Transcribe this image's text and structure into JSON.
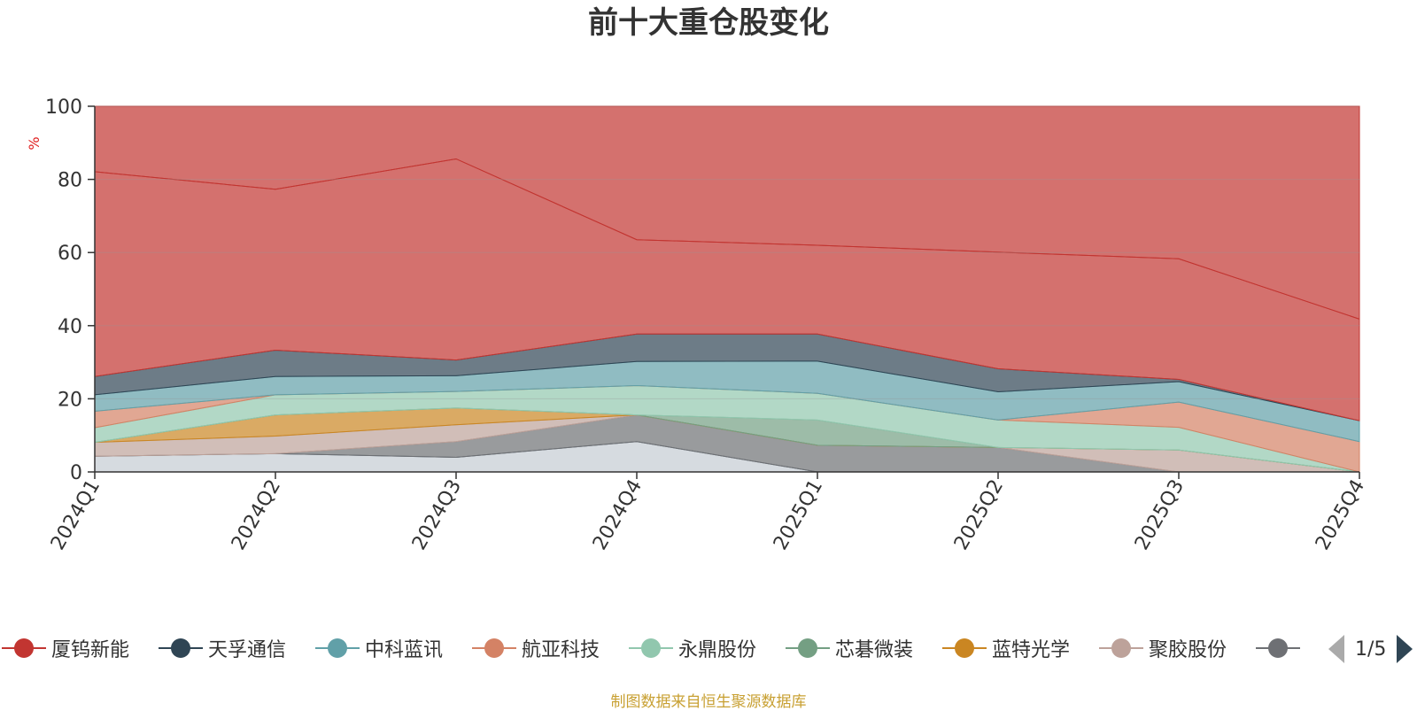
{
  "chart_data": {
    "type": "area",
    "title": "前十大重仓股变化",
    "ylabel": "%",
    "ylim": [
      0,
      100
    ],
    "yticks": [
      0,
      20,
      40,
      60,
      80,
      100
    ],
    "grid": true,
    "legend_position": "bottom",
    "categories": [
      "2024Q1",
      "2024Q2",
      "2024Q3",
      "2024Q4",
      "2025Q1",
      "2025Q2",
      "2025Q3",
      "2025Q4"
    ],
    "series": [
      {
        "name": "厦钨新能",
        "color": "#c23531",
        "values": [
          56.0,
          44.0,
          55.0,
          25.8,
          24.3,
          31.9,
          33.0,
          27.8
        ]
      },
      {
        "name": "天孚通信",
        "color": "#2f4554",
        "values": [
          5.0,
          7.2,
          4.3,
          7.5,
          7.4,
          6.3,
          0.6,
          0.0
        ]
      },
      {
        "name": "中科蓝讯",
        "color": "#61a0a8",
        "values": [
          4.5,
          5.0,
          4.3,
          6.6,
          8.8,
          7.7,
          5.6,
          5.7
        ]
      },
      {
        "name": "航亚科技",
        "color": "#d48265",
        "values": [
          4.5,
          0.0,
          0.0,
          0.0,
          0.0,
          0.0,
          6.9,
          8.3
        ]
      },
      {
        "name": "永鼎股份",
        "color": "#91c7ae",
        "values": [
          4.0,
          5.5,
          4.5,
          8.0,
          7.3,
          7.5,
          6.2,
          0.0
        ]
      },
      {
        "name": "芯碁微装",
        "color": "#749f83",
        "values": [
          0.0,
          0.0,
          0.0,
          0.0,
          6.9,
          0.0,
          0.0,
          0.0
        ]
      },
      {
        "name": "蓝特光学",
        "color": "#ca8622",
        "values": [
          0.0,
          5.8,
          4.6,
          0.0,
          0.0,
          0.0,
          0.0,
          0.0
        ]
      },
      {
        "name": "聚胶股份",
        "color": "#bda29a",
        "values": [
          3.8,
          4.8,
          4.6,
          0.0,
          0.0,
          0.0,
          6.0,
          0.0
        ]
      },
      {
        "name": "",
        "color": "#6e7074",
        "values": [
          0.0,
          0.0,
          4.3,
          7.3,
          7.3,
          6.7,
          0.0,
          0.0
        ]
      },
      {
        "name": "",
        "color": "#546570",
        "values": [
          0.0,
          0.0,
          0.0,
          0.0,
          0.0,
          0.0,
          0.0,
          0.0
        ]
      },
      {
        "name": "",
        "color": "#c4ccd3",
        "values": [
          4.3,
          5.0,
          4.0,
          8.3,
          0.0,
          0.0,
          0.0,
          0.0
        ]
      }
    ]
  },
  "legend": {
    "items": [
      {
        "label": "厦钨新能",
        "color": "#c23531"
      },
      {
        "label": "天孚通信",
        "color": "#2f4554"
      },
      {
        "label": "中科蓝讯",
        "color": "#61a0a8"
      },
      {
        "label": "航亚科技",
        "color": "#d48265"
      },
      {
        "label": "永鼎股份",
        "color": "#91c7ae"
      },
      {
        "label": "芯碁微装",
        "color": "#749f83"
      },
      {
        "label": "蓝特光学",
        "color": "#ca8622"
      },
      {
        "label": "聚胶股份",
        "color": "#bda29a"
      },
      {
        "label": "",
        "color": "#6e7074"
      }
    ],
    "page": "1/5"
  },
  "source_note": "制图数据来自恒生聚源数据库"
}
